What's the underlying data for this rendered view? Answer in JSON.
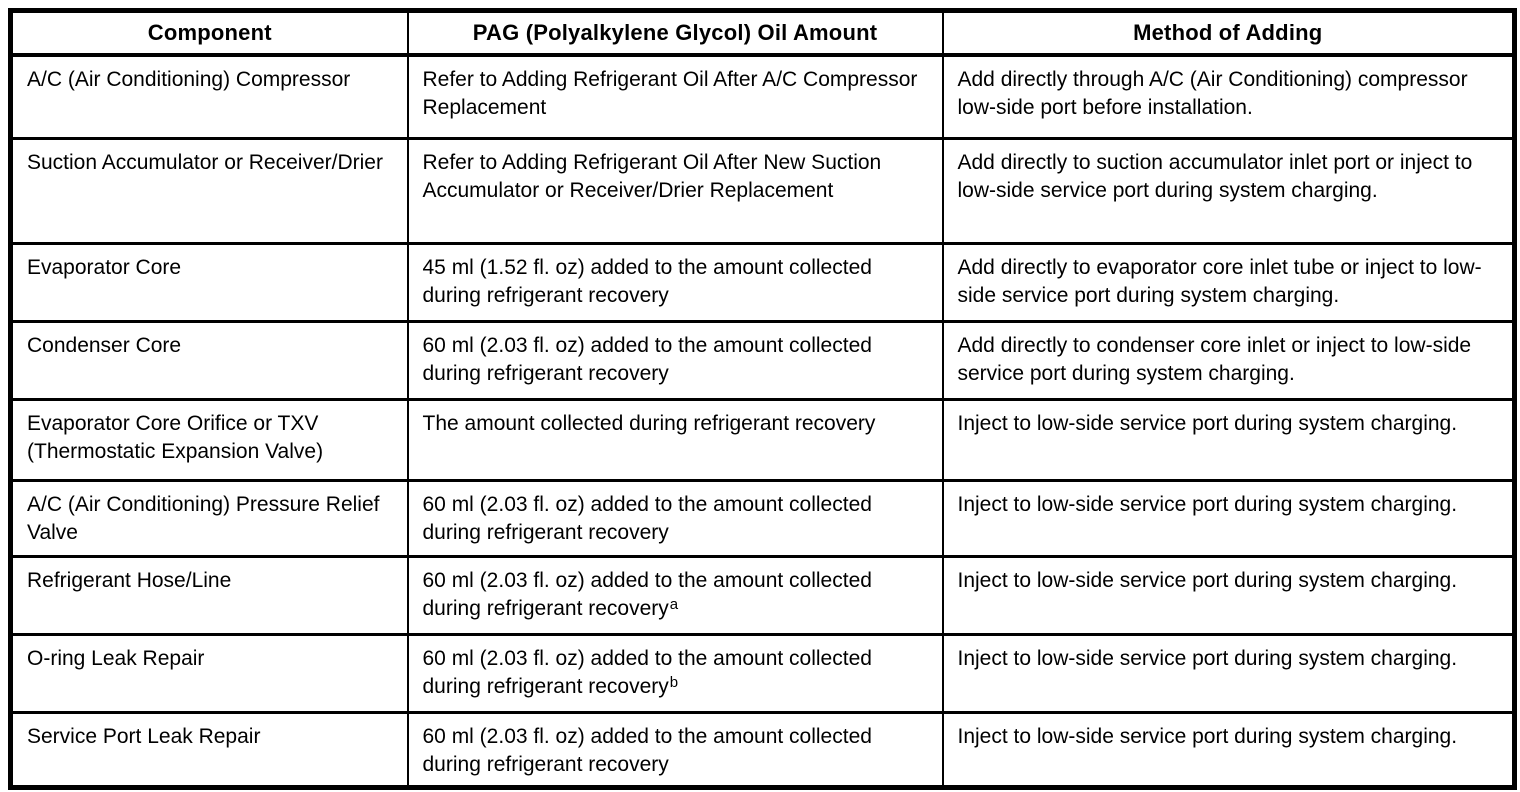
{
  "page": {
    "background_color": "#ffffff",
    "text_color": "#000000",
    "border_color": "#000000"
  },
  "table": {
    "headers": [
      "Component",
      "PAG (Polyalkylene Glycol) Oil Amount",
      "Method of Adding"
    ],
    "rows": [
      {
        "component": "A/C (Air Conditioning) Compressor",
        "oil_amount": "Refer to Adding Refrigerant Oil After A/C Compressor Replacement",
        "oil_amount_note": "",
        "method": "Add directly through A/C (Air Conditioning) compressor low-side port before installation."
      },
      {
        "component": "Suction Accumulator or Receiver/Drier",
        "oil_amount": "Refer to Adding Refrigerant Oil After New Suction Accumulator or Receiver/Drier Replacement",
        "oil_amount_note": "",
        "method": "Add directly to suction accumulator inlet port or inject to low-side service port during system charging."
      },
      {
        "component": "Evaporator Core",
        "oil_amount": "45 ml (1.52 fl. oz) added to the amount collected during refrigerant recovery",
        "oil_amount_note": "",
        "method": "Add directly to evaporator core inlet tube or inject to low-side service port during system charging."
      },
      {
        "component": "Condenser Core",
        "oil_amount": "60 ml (2.03 fl. oz) added to the amount collected during refrigerant recovery",
        "oil_amount_note": "",
        "method": "Add directly to condenser core inlet or inject to low-side service port during system charging."
      },
      {
        "component": "Evaporator Core Orifice or TXV (Thermostatic Expansion Valve)",
        "oil_amount": "The amount collected during refrigerant recovery",
        "oil_amount_note": "",
        "method": "Inject to low-side service port during system charging."
      },
      {
        "component": "A/C (Air Conditioning) Pressure Relief Valve",
        "oil_amount": "60 ml (2.03 fl. oz) added to the amount collected during refrigerant recovery",
        "oil_amount_note": "",
        "method": "Inject to low-side service port during system charging."
      },
      {
        "component": "Refrigerant Hose/Line",
        "oil_amount": "60 ml (2.03 fl. oz) added to the amount collected during refrigerant recovery",
        "oil_amount_note": "a",
        "method": "Inject to low-side service port during system charging."
      },
      {
        "component": "O-ring Leak Repair",
        "oil_amount": "60 ml (2.03 fl. oz) added to the amount collected during refrigerant recovery",
        "oil_amount_note": "b",
        "method": "Inject to low-side service port during system charging."
      },
      {
        "component": "Service Port Leak Repair",
        "oil_amount": "60 ml (2.03 fl. oz) added to the amount collected during refrigerant recovery",
        "oil_amount_note": "",
        "method": "Inject to low-side service port during system charging."
      }
    ]
  }
}
